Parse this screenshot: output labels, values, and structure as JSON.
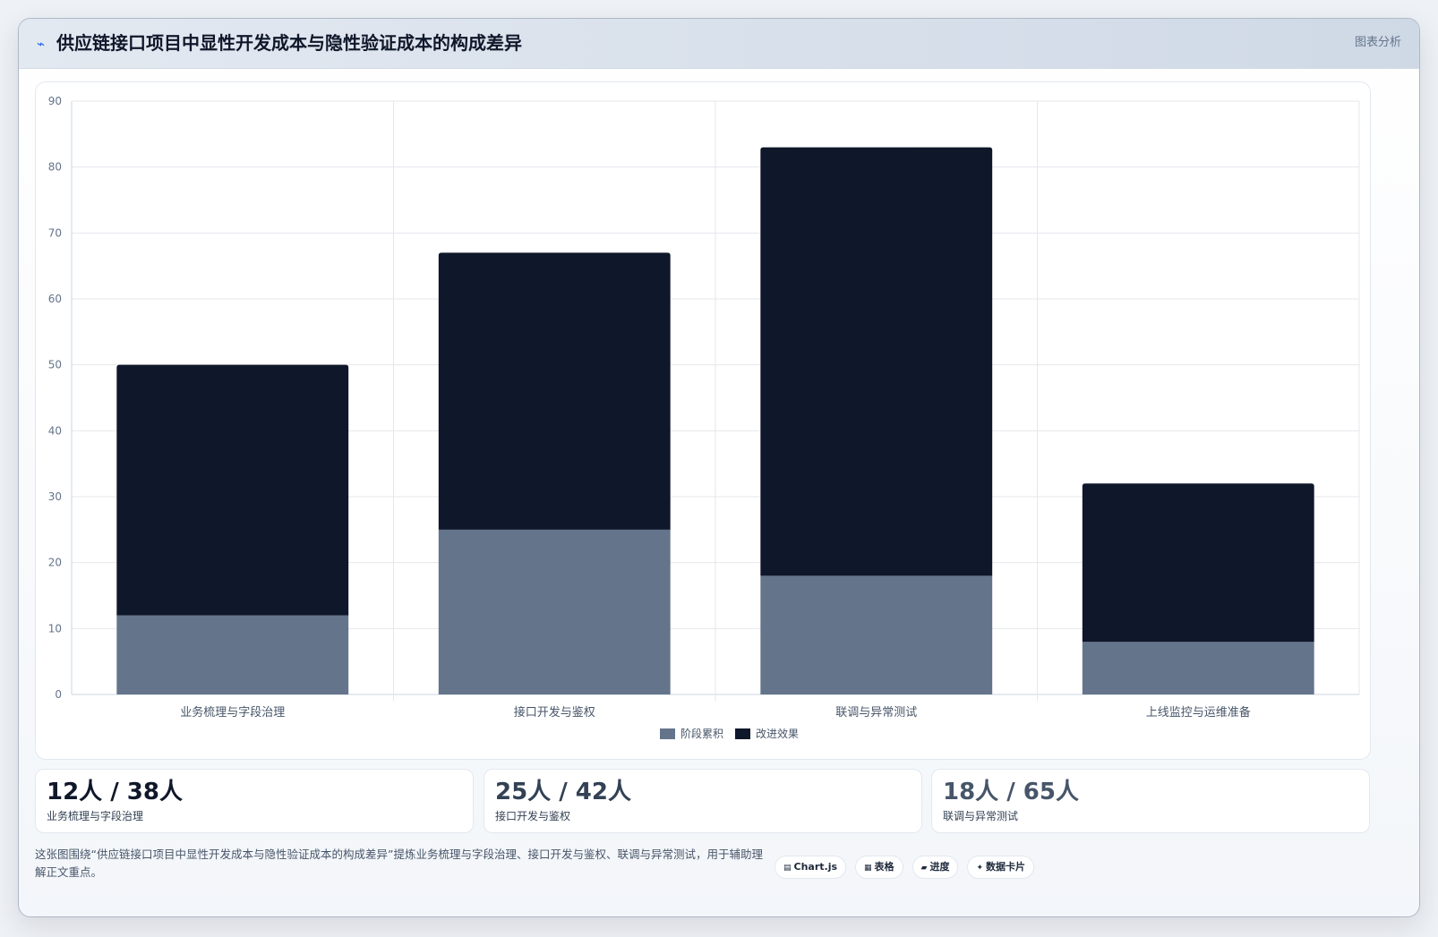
{
  "header": {
    "icon": "⌁",
    "title": "供应链接口项目中显性开发成本与隐性验证成本的构成差异",
    "tag": "图表分析"
  },
  "chart_data": {
    "type": "bar",
    "stacked": true,
    "categories": [
      "业务梳理与字段治理",
      "接口开发与鉴权",
      "联调与异常测试",
      "上线监控与运维准备"
    ],
    "series": [
      {
        "name": "阶段累积",
        "values": [
          12,
          25,
          18,
          8
        ],
        "color": "#64748b"
      },
      {
        "name": "改进效果",
        "values": [
          38,
          42,
          65,
          24
        ],
        "color": "#0f172a"
      }
    ],
    "ylim": [
      0,
      90
    ],
    "yticks": [
      0,
      10,
      20,
      30,
      40,
      50,
      60,
      70,
      80,
      90
    ],
    "grid": true,
    "legend": "bottom"
  },
  "stats": [
    {
      "value": "12人 / 38人",
      "label": "业务梳理与字段治理",
      "color": "#0f172a"
    },
    {
      "value": "25人 / 42人",
      "label": "接口开发与鉴权",
      "color": "#334155"
    },
    {
      "value": "18人 / 65人",
      "label": "联调与异常测试",
      "color": "#475569"
    }
  ],
  "footer": {
    "description": "这张图围绕“供应链接口项目中显性开发成本与隐性验证成本的构成差异”提炼业务梳理与字段治理、接口开发与鉴权、联调与异常测试，用于辅助理解正文重点。",
    "pills": [
      {
        "icon": "▤",
        "label": "Chart.js"
      },
      {
        "icon": "▦",
        "label": "表格"
      },
      {
        "icon": "▰",
        "label": "进度"
      },
      {
        "icon": "✦",
        "label": "数据卡片"
      }
    ]
  }
}
